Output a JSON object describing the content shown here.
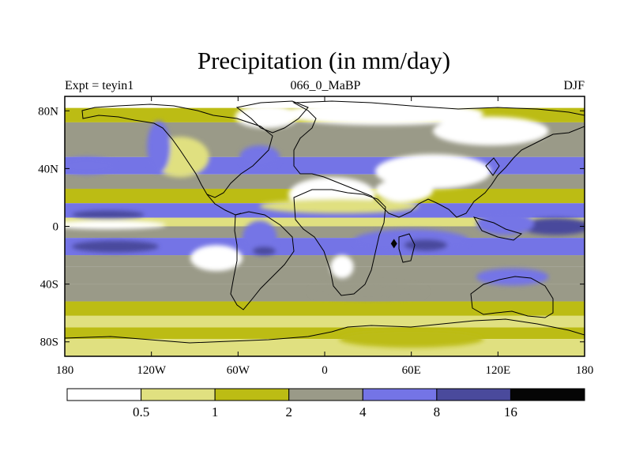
{
  "title": "Precipitation (in mm/day)",
  "left_label": "Expt = teyin1",
  "center_label": "066_0_MaBP",
  "right_label": "DJF",
  "lat_ticks": [
    {
      "lat": 80,
      "label": "80N"
    },
    {
      "lat": 40,
      "label": "40N"
    },
    {
      "lat": 0,
      "label": "0"
    },
    {
      "lat": -40,
      "label": "40S"
    },
    {
      "lat": -80,
      "label": "80S"
    }
  ],
  "lon_ticks": [
    {
      "lon": -180,
      "label": "180"
    },
    {
      "lon": -120,
      "label": "120W"
    },
    {
      "lon": -60,
      "label": "60W"
    },
    {
      "lon": 0,
      "label": "0"
    },
    {
      "lon": 60,
      "label": "60E"
    },
    {
      "lon": 120,
      "label": "120E"
    },
    {
      "lon": 180,
      "label": "180"
    }
  ],
  "colorbar": {
    "colors": [
      "#ffffff",
      "#e0e080",
      "#bcbc14",
      "#9a9a88",
      "#7474e6",
      "#4a4a9c",
      "#050505"
    ],
    "levels": [
      "0.5",
      "1",
      "2",
      "4",
      "8",
      "16"
    ],
    "units": "mm/day"
  },
  "latitude_bands": [
    {
      "from_lat": 90,
      "to_lat": 82,
      "bin": 0
    },
    {
      "from_lat": 82,
      "to_lat": 72,
      "bin": 2
    },
    {
      "from_lat": 72,
      "to_lat": 58,
      "bin": 3
    },
    {
      "from_lat": 58,
      "to_lat": 48,
      "bin": 3
    },
    {
      "from_lat": 48,
      "to_lat": 36,
      "bin": 4
    },
    {
      "from_lat": 36,
      "to_lat": 26,
      "bin": 3
    },
    {
      "from_lat": 26,
      "to_lat": 16,
      "bin": 2
    },
    {
      "from_lat": 16,
      "to_lat": 6,
      "bin": 4
    },
    {
      "from_lat": 6,
      "to_lat": 0,
      "bin": 1
    },
    {
      "from_lat": 0,
      "to_lat": -8,
      "bin": 3
    },
    {
      "from_lat": -8,
      "to_lat": -20,
      "bin": 4
    },
    {
      "from_lat": -20,
      "to_lat": -28,
      "bin": 3
    },
    {
      "from_lat": -28,
      "to_lat": -40,
      "bin": 3
    },
    {
      "from_lat": -40,
      "to_lat": -52,
      "bin": 3
    },
    {
      "from_lat": -52,
      "to_lat": -62,
      "bin": 2
    },
    {
      "from_lat": -62,
      "to_lat": -70,
      "bin": 1
    },
    {
      "from_lat": -70,
      "to_lat": -78,
      "bin": 2
    },
    {
      "from_lat": -78,
      "to_lat": -90,
      "bin": 1
    }
  ],
  "precip_regions": [
    {
      "name": "arctic-dry",
      "bin": 0,
      "cx": 40,
      "cy": 78,
      "rx": 70,
      "ry": 8
    },
    {
      "name": "greenland-dry",
      "bin": 0,
      "cx": -40,
      "cy": 76,
      "rx": 22,
      "ry": 8
    },
    {
      "name": "siberia-dry",
      "bin": 0,
      "cx": 115,
      "cy": 66,
      "rx": 40,
      "ry": 10
    },
    {
      "name": "north-america-dry",
      "bin": 1,
      "cx": -100,
      "cy": 48,
      "rx": 20,
      "ry": 14
    },
    {
      "name": "pacific-north-storm",
      "bin": 4,
      "cx": -165,
      "cy": 42,
      "rx": 20,
      "ry": 6
    },
    {
      "name": "rockies-wet",
      "bin": 4,
      "cx": -115,
      "cy": 55,
      "rx": 8,
      "ry": 18
    },
    {
      "name": "north-atlantic-wet",
      "bin": 4,
      "cx": -45,
      "cy": 48,
      "rx": 14,
      "ry": 8
    },
    {
      "name": "west-asia-dry",
      "bin": 0,
      "cx": 75,
      "cy": 38,
      "rx": 40,
      "ry": 12
    },
    {
      "name": "north-africa-dry",
      "bin": 0,
      "cx": 5,
      "cy": 22,
      "rx": 30,
      "ry": 12
    },
    {
      "name": "sahara-margin",
      "bin": 1,
      "cx": 10,
      "cy": 14,
      "rx": 55,
      "ry": 5
    },
    {
      "name": "arabia-dry",
      "bin": 0,
      "cx": 55,
      "cy": 25,
      "rx": 20,
      "ry": 8
    },
    {
      "name": "east-pacific-dry",
      "bin": 0,
      "cx": -150,
      "cy": 1,
      "rx": 40,
      "ry": 3
    },
    {
      "name": "pacific-north-itcz",
      "bin": 5,
      "cx": -150,
      "cy": 8,
      "rx": 25,
      "ry": 3
    },
    {
      "name": "south-pacific-itcz",
      "bin": 5,
      "cx": -145,
      "cy": -14,
      "rx": 30,
      "ry": 4
    },
    {
      "name": "south-atlantic-dry",
      "bin": 0,
      "cx": -75,
      "cy": -22,
      "rx": 18,
      "ry": 9
    },
    {
      "name": "south-america-wet",
      "bin": 4,
      "cx": -45,
      "cy": -8,
      "rx": 12,
      "ry": 12
    },
    {
      "name": "south-america-core",
      "bin": 5,
      "cx": -42,
      "cy": -17,
      "rx": 8,
      "ry": 3
    },
    {
      "name": "southern-africa-dry",
      "bin": 0,
      "cx": 12,
      "cy": -28,
      "rx": 8,
      "ry": 8
    },
    {
      "name": "indian-ocean-wet",
      "bin": 4,
      "cx": 60,
      "cy": -10,
      "rx": 40,
      "ry": 8
    },
    {
      "name": "indian-ocean-core",
      "bin": 5,
      "cx": 70,
      "cy": -13,
      "rx": 15,
      "ry": 4
    },
    {
      "name": "western-pacific-wet",
      "bin": 5,
      "cx": 160,
      "cy": 0,
      "rx": 25,
      "ry": 6
    },
    {
      "name": "maritime-continent",
      "bin": 4,
      "cx": 125,
      "cy": 2,
      "rx": 20,
      "ry": 8
    },
    {
      "name": "australia-wet",
      "bin": 4,
      "cx": 130,
      "cy": -35,
      "rx": 25,
      "ry": 6
    },
    {
      "name": "south-indian-gray",
      "bin": 3,
      "cx": 30,
      "cy": -45,
      "rx": 40,
      "ry": 6
    },
    {
      "name": "antarctic-yellow",
      "bin": 2,
      "cx": 60,
      "cy": -78,
      "rx": 50,
      "ry": 6
    }
  ],
  "max_points": [
    {
      "name": "indian-ocean-peak",
      "bin": 6,
      "lon": 48,
      "lat": -12
    }
  ]
}
